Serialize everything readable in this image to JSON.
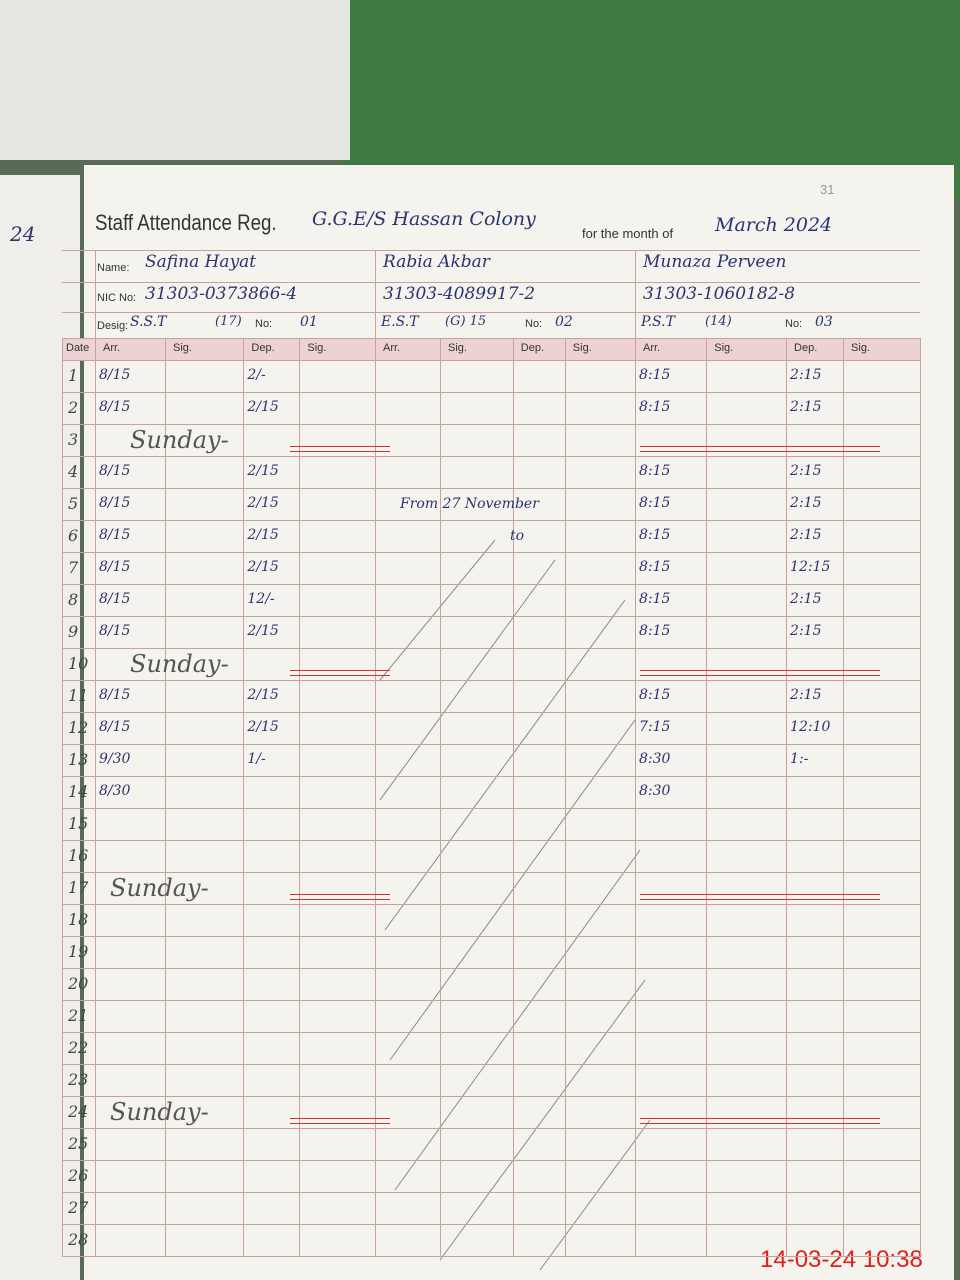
{
  "header": {
    "title": "Staff Attendance Reg.",
    "school": "G.G.E/S Hassan Colony",
    "month_label": "for the month of",
    "month": "March 2024",
    "page": "31",
    "left_page": "24"
  },
  "labels": {
    "name": "Name:",
    "nic": "NIC No:",
    "desig": "Desig:",
    "no": "No:",
    "date": "Date",
    "arr": "Arr.",
    "sig": "Sig.",
    "dep": "Dep."
  },
  "staff": [
    {
      "name": "Safina Hayat",
      "nic": "31303-0373866-4",
      "desig": "S.S.T",
      "grade": "(17)",
      "no": "01"
    },
    {
      "name": "Rabia Akbar",
      "nic": "31303-4089917-2",
      "desig": "E.S.T",
      "grade": "(G) 15",
      "no": "02",
      "note": [
        "From 27 November",
        "to"
      ]
    },
    {
      "name": "Munaza Perveen",
      "nic": "31303-1060182-8",
      "desig": "P.S.T",
      "grade": "(14)",
      "no": "03"
    }
  ],
  "rows": [
    {
      "date": "1",
      "s1": [
        "8/15",
        "2/-"
      ],
      "s3": [
        "8:15",
        "2:15"
      ]
    },
    {
      "date": "2",
      "s1": [
        "8/15",
        "2/15"
      ],
      "s3": [
        "8:15",
        "2:15"
      ]
    },
    {
      "date": "3",
      "note": "Sunday-"
    },
    {
      "date": "4",
      "s1": [
        "8/15",
        "2/15"
      ],
      "s3": [
        "8:15",
        "2:15"
      ]
    },
    {
      "date": "5",
      "s1": [
        "8/15",
        "2/15"
      ],
      "s3": [
        "8:15",
        "2:15"
      ]
    },
    {
      "date": "6",
      "s1": [
        "8/15",
        "2/15"
      ],
      "s3": [
        "8:15",
        "2:15"
      ]
    },
    {
      "date": "7",
      "s1": [
        "8/15",
        "2/15"
      ],
      "s3": [
        "8:15",
        "12:15"
      ]
    },
    {
      "date": "8",
      "s1": [
        "8/15",
        "12/-"
      ],
      "s3": [
        "8:15",
        "2:15"
      ]
    },
    {
      "date": "9",
      "s1": [
        "8/15",
        "2/15"
      ],
      "s3": [
        "8:15",
        "2:15"
      ]
    },
    {
      "date": "10",
      "note": "Sunday-"
    },
    {
      "date": "11",
      "s1": [
        "8/15",
        "2/15"
      ],
      "s3": [
        "8:15",
        "2:15"
      ]
    },
    {
      "date": "12",
      "s1": [
        "8/15",
        "2/15"
      ],
      "s3": [
        "7:15",
        "12:10"
      ]
    },
    {
      "date": "13",
      "s1": [
        "9/30",
        "1/-"
      ],
      "s3": [
        "8:30",
        "1:-"
      ]
    },
    {
      "date": "14",
      "s1": [
        "8/30"
      ],
      "s3": [
        "8:30"
      ]
    },
    {
      "date": "15"
    },
    {
      "date": "16"
    },
    {
      "date": "17",
      "note": "Sunday-"
    },
    {
      "date": "18"
    },
    {
      "date": "19"
    },
    {
      "date": "20"
    },
    {
      "date": "21"
    },
    {
      "date": "22"
    },
    {
      "date": "23"
    },
    {
      "date": "24",
      "note": "Sunday-"
    },
    {
      "date": "25"
    },
    {
      "date": "26"
    },
    {
      "date": "27"
    },
    {
      "date": "28"
    }
  ],
  "timestamp": "14-03-24 10:38"
}
